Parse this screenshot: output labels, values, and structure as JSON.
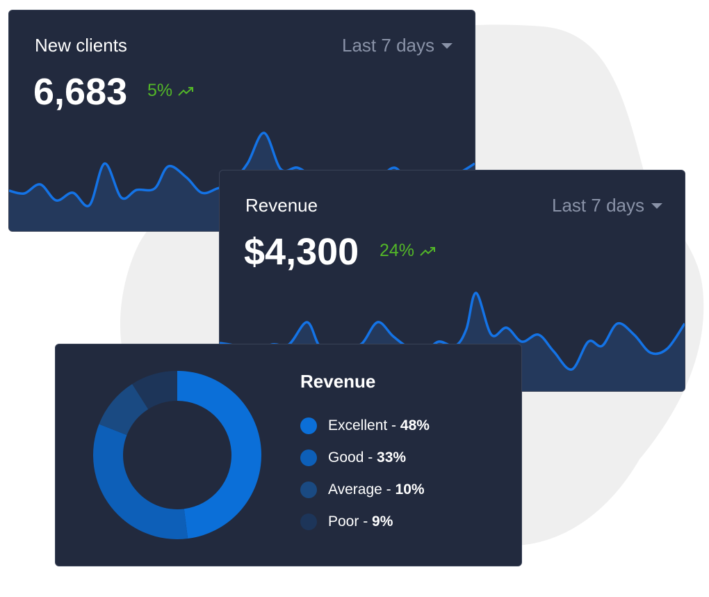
{
  "cards": {
    "new_clients": {
      "title": "New clients",
      "range_label": "Last 7 days",
      "value": "6,683",
      "change": "5%"
    },
    "revenue": {
      "title": "Revenue",
      "range_label": "Last 7 days",
      "value": "$4,300",
      "change": "24%"
    },
    "revenue_breakdown": {
      "title": "Revenue",
      "items": [
        {
          "label": "Excellent",
          "sep": " - ",
          "pct": "48%",
          "color": "#0b6fd8"
        },
        {
          "label": "Good",
          "sep": " - ",
          "pct": "33%",
          "color": "#0d5fb8"
        },
        {
          "label": "Average",
          "sep": " - ",
          "pct": "10%",
          "color": "#1a4a82"
        },
        {
          "label": "Poor",
          "sep": " - ",
          "pct": "9%",
          "color": "#1d3559"
        }
      ]
    }
  },
  "icons": {
    "trend": "trending-up-icon",
    "range": "caret-down-icon"
  },
  "colors": {
    "card_bg": "#222a3e",
    "line": "#1473e6",
    "fill": "#24395c",
    "positive": "#53b728",
    "muted": "#8a93a8",
    "blob": "#efefef"
  },
  "chart_data": {
    "type": "pie",
    "title": "Revenue",
    "categories": [
      "Excellent",
      "Good",
      "Average",
      "Poor"
    ],
    "values": [
      48,
      33,
      10,
      9
    ]
  }
}
